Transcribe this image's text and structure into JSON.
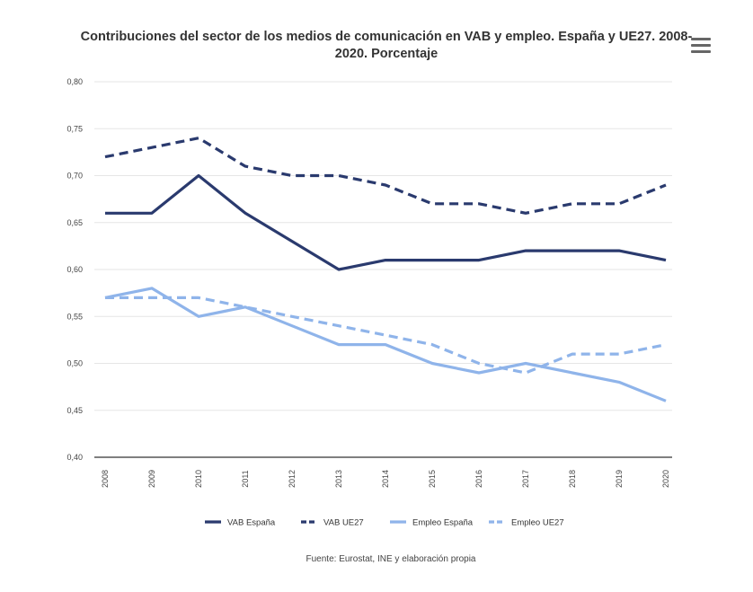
{
  "chart_data": {
    "type": "line",
    "title": "Contribuciones del sector de los medios de comunicación en VAB y empleo. España y UE27. 2008-2020. Porcentaje",
    "categories": [
      "2008",
      "2009",
      "2010",
      "2011",
      "2012",
      "2013",
      "2014",
      "2015",
      "2016",
      "2017",
      "2018",
      "2019",
      "2020"
    ],
    "y_ticks": [
      "0,80",
      "0,75",
      "0,70",
      "0,65",
      "0,60",
      "0,55",
      "0,50",
      "0,45",
      "0,40"
    ],
    "ylim": [
      0.4,
      0.8
    ],
    "grid": true,
    "legend_position": "bottom",
    "series": [
      {
        "name": "VAB España",
        "color": "#2a3a6e",
        "style": "solid",
        "values": [
          0.66,
          0.66,
          0.7,
          0.66,
          0.63,
          0.6,
          0.61,
          0.61,
          0.61,
          0.62,
          0.62,
          0.62,
          0.61
        ]
      },
      {
        "name": "VAB UE27",
        "color": "#2a3a6e",
        "style": "dashed",
        "values": [
          0.72,
          0.73,
          0.74,
          0.71,
          0.7,
          0.7,
          0.69,
          0.67,
          0.67,
          0.66,
          0.67,
          0.67,
          0.69
        ]
      },
      {
        "name": "Empleo España",
        "color": "#8fb4ea",
        "style": "solid",
        "values": [
          0.57,
          0.58,
          0.55,
          0.56,
          0.54,
          0.52,
          0.52,
          0.5,
          0.49,
          0.5,
          0.49,
          0.48,
          0.46
        ]
      },
      {
        "name": "Empleo UE27",
        "color": "#8fb4ea",
        "style": "dashed",
        "values": [
          0.57,
          0.57,
          0.57,
          0.56,
          0.55,
          0.54,
          0.53,
          0.52,
          0.5,
          0.49,
          0.51,
          0.51,
          0.52
        ]
      }
    ],
    "source": "Fuente: Eurostat, INE y elaboración propia"
  },
  "menu_icon": "hamburger-menu-icon"
}
